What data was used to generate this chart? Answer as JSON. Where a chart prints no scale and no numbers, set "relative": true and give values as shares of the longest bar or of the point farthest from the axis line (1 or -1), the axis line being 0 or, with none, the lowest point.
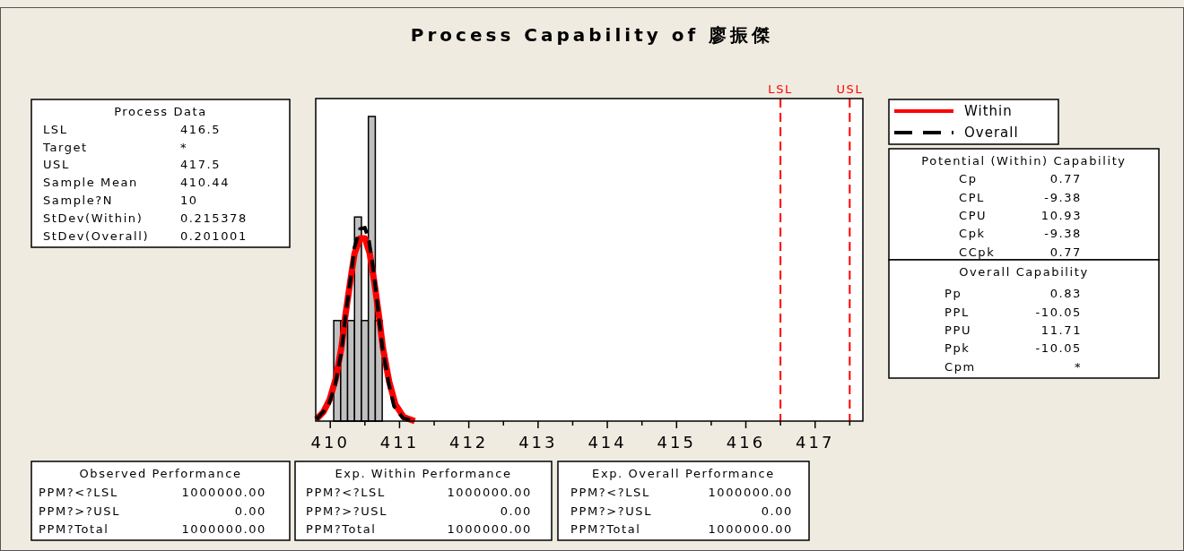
{
  "chart_data": [
    {
      "type": "histogram",
      "title": "Process Capability of 廖振傑",
      "relative": true,
      "color": "#c0c0c0",
      "bins": [
        410.05,
        410.15,
        410.25,
        410.35,
        410.45,
        410.55,
        410.65,
        410.75
      ],
      "values": [
        0.33,
        0.33,
        0.33,
        0.67,
        0.33,
        1,
        0.33
      ],
      "series": [
        {
          "name": "Within",
          "type": "line",
          "color": "#ff0000",
          "line_style": "solid",
          "x": [
            409.8,
            409.9,
            409.99,
            410.08,
            410.16,
            410.22,
            410.29,
            410.35,
            410.43,
            410.5,
            410.57,
            410.64,
            410.7,
            410.76,
            410.85,
            410.94,
            411.06,
            411.22
          ],
          "values": [
            0.006,
            0.03,
            0.07,
            0.14,
            0.24,
            0.35,
            0.46,
            0.55,
            0.6,
            0.6,
            0.55,
            0.45,
            0.35,
            0.24,
            0.13,
            0.055,
            0.013,
            0.0
          ]
        },
        {
          "name": "Overall",
          "type": "line",
          "color": "#000000",
          "line_style": "dashed",
          "x": [
            409.8,
            409.97,
            410.07,
            410.16,
            410.22,
            410.29,
            410.35,
            410.43,
            410.5,
            410.56,
            410.63,
            410.69,
            410.75,
            410.84,
            410.92,
            411.05,
            411.2
          ],
          "values": [
            0.005,
            0.049,
            0.118,
            0.227,
            0.345,
            0.463,
            0.571,
            0.631,
            0.635,
            0.591,
            0.483,
            0.365,
            0.246,
            0.128,
            0.049,
            0.01,
            0.0
          ]
        }
      ],
      "ref_lines": [
        {
          "axis": "x",
          "value": 416.5,
          "label": "LSL",
          "color": "#ff0000",
          "line_style": "dashed"
        },
        {
          "axis": "x",
          "value": 417.5,
          "label": "USL",
          "color": "#ff0000",
          "line_style": "dashed"
        }
      ],
      "xlim": [
        409.79,
        417.69
      ],
      "xticks": [
        410,
        {
          "value": 410.5,
          "label": null
        },
        411,
        {
          "value": 411.5,
          "label": null
        },
        412,
        {
          "value": 412.5,
          "label": null
        },
        413,
        {
          "value": 413.5,
          "label": null
        },
        414,
        {
          "value": 414.5,
          "label": null
        },
        415,
        {
          "value": 415.5,
          "label": null
        },
        416,
        {
          "value": 416.5,
          "label": null
        },
        417,
        {
          "value": 417.5,
          "label": null
        }
      ],
      "legend": "right"
    },
    {
      "type": "other",
      "title": "Process Data",
      "annotations": [
        "LSL",
        "416.5",
        "Target",
        "*",
        "USL",
        "417.5",
        "Sample Mean",
        "410.44",
        "Sample?N",
        "10",
        "StDev(Within)",
        "0.215378",
        "StDev(Overall)",
        "0.201001"
      ]
    },
    {
      "type": "other",
      "title": "Potential (Within) Capability",
      "annotations": [
        "Cp",
        "0.77",
        "CPL",
        "-9.38",
        "CPU",
        "10.93",
        "Cpk",
        "-9.38",
        "CCpk",
        "0.77"
      ]
    },
    {
      "type": "other",
      "title": "Overall Capability",
      "annotations": [
        "Pp",
        "0.83",
        "PPL",
        "-10.05",
        "PPU",
        "11.71",
        "Ppk",
        "-10.05",
        "Cpm",
        "*"
      ]
    },
    {
      "type": "other",
      "title": "Observed Performance",
      "annotations": [
        "PPM?<?LSL",
        "1000000.00",
        "PPM?>?USL",
        "0.00",
        "PPM?Total",
        "1000000.00"
      ]
    },
    {
      "type": "other",
      "title": "Exp. Within Performance",
      "annotations": [
        "PPM?<?LSL",
        "1000000.00",
        "PPM?>?USL",
        "0.00",
        "PPM?Total",
        "1000000.00"
      ]
    },
    {
      "type": "other",
      "title": "Exp. Overall Performance",
      "annotations": [
        "PPM?<?LSL",
        "1000000.00",
        "PPM?>?USL",
        "0.00",
        "PPM?Total",
        "1000000.00"
      ]
    }
  ]
}
